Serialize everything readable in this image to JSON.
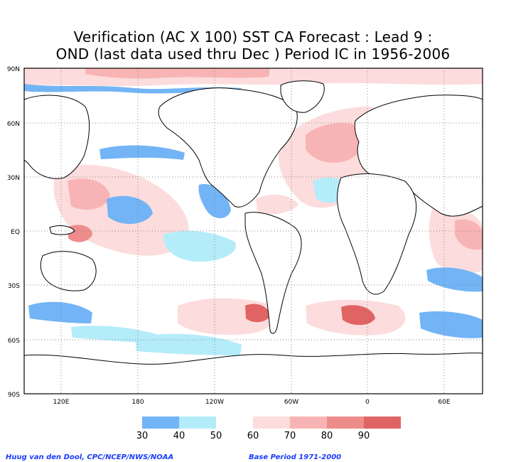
{
  "title": {
    "line1": "Verification (AC X 100) SST CA Forecast : Lead 9 :",
    "line2": "OND (last data used thru Dec ) Period IC in 1956-2006"
  },
  "lat_labels": [
    "90N",
    "60N",
    "30N",
    "EQ",
    "30S",
    "60S",
    "90S"
  ],
  "lon_labels": [
    "120E",
    "180",
    "120W",
    "60W",
    "0",
    "60E"
  ],
  "colorbar": {
    "levels": [
      "30",
      "40",
      "50",
      "60",
      "70",
      "80",
      "90"
    ],
    "colors": [
      "#72b4f5",
      "#b4ecfa",
      "#ffffff",
      "#fcdcdc",
      "#f8b4b4",
      "#ee8c8c",
      "#e06464"
    ]
  },
  "footer": {
    "credit": "Huug van den Dool, CPC/NCEP/NWS/NOAA",
    "base_period": "Base Period 1971-2000"
  },
  "colors": {
    "blue_strong": "#72b4f5",
    "blue_light": "#b4ecfa",
    "pink_light": "#fcdcdc",
    "pink_mid": "#f8b4b4",
    "red_mid": "#ee8c8c",
    "red_strong": "#e06464",
    "coast": "#000000",
    "grid": "#888888"
  }
}
